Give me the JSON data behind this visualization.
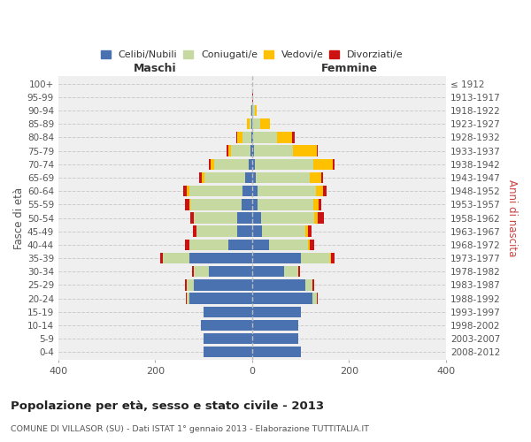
{
  "age_groups": [
    "0-4",
    "5-9",
    "10-14",
    "15-19",
    "20-24",
    "25-29",
    "30-34",
    "35-39",
    "40-44",
    "45-49",
    "50-54",
    "55-59",
    "60-64",
    "65-69",
    "70-74",
    "75-79",
    "80-84",
    "85-89",
    "90-94",
    "95-99",
    "100+"
  ],
  "birth_years": [
    "2008-2012",
    "2003-2007",
    "1998-2002",
    "1993-1997",
    "1988-1992",
    "1983-1987",
    "1978-1982",
    "1973-1977",
    "1968-1972",
    "1963-1967",
    "1958-1962",
    "1953-1957",
    "1948-1952",
    "1943-1947",
    "1938-1942",
    "1933-1937",
    "1928-1932",
    "1923-1927",
    "1918-1922",
    "1913-1917",
    "≤ 1912"
  ],
  "colors": {
    "celibi": "#4a72b0",
    "coniugati": "#c5d9a0",
    "vedovi": "#ffc000",
    "divorziati": "#cc1111"
  },
  "maschi": {
    "celibi": [
      100,
      100,
      105,
      100,
      130,
      120,
      90,
      130,
      50,
      30,
      30,
      22,
      20,
      14,
      8,
      4,
      2,
      1,
      1,
      0,
      0
    ],
    "coniugati": [
      0,
      0,
      0,
      0,
      5,
      15,
      30,
      55,
      80,
      85,
      90,
      105,
      110,
      85,
      70,
      40,
      18,
      5,
      2,
      0,
      0
    ],
    "vedovi": [
      0,
      0,
      0,
      0,
      0,
      0,
      0,
      0,
      0,
      0,
      0,
      3,
      5,
      5,
      8,
      5,
      10,
      5,
      0,
      0,
      0
    ],
    "divorziati": [
      0,
      0,
      0,
      0,
      2,
      4,
      4,
      5,
      8,
      8,
      8,
      8,
      8,
      5,
      3,
      4,
      2,
      0,
      1,
      0,
      0
    ]
  },
  "femmine": {
    "celibi": [
      100,
      95,
      95,
      100,
      125,
      110,
      65,
      100,
      35,
      20,
      18,
      12,
      12,
      8,
      6,
      4,
      2,
      1,
      0,
      0,
      0
    ],
    "coniugati": [
      0,
      0,
      0,
      0,
      8,
      15,
      30,
      60,
      80,
      90,
      110,
      115,
      120,
      110,
      120,
      80,
      50,
      15,
      5,
      1,
      0
    ],
    "vedovi": [
      0,
      0,
      0,
      0,
      0,
      0,
      0,
      2,
      3,
      5,
      8,
      10,
      15,
      25,
      40,
      50,
      30,
      20,
      5,
      0,
      0
    ],
    "divorziati": [
      0,
      0,
      0,
      0,
      2,
      3,
      4,
      8,
      10,
      8,
      12,
      5,
      6,
      4,
      4,
      2,
      5,
      0,
      0,
      1,
      0
    ]
  },
  "xlim": 400,
  "title": "Popolazione per età, sesso e stato civile - 2013",
  "subtitle": "COMUNE DI VILLASOR (SU) - Dati ISTAT 1° gennaio 2013 - Elaborazione TUTTITALIA.IT",
  "ylabel_left": "Fasce di età",
  "ylabel_right": "Anni di nascita",
  "xlabel_left": "Maschi",
  "xlabel_right": "Femmine",
  "legend_labels": [
    "Celibi/Nubili",
    "Coniugati/e",
    "Vedovi/e",
    "Divorziati/e"
  ],
  "background_color": "#ffffff",
  "plot_bg_color": "#efefef"
}
